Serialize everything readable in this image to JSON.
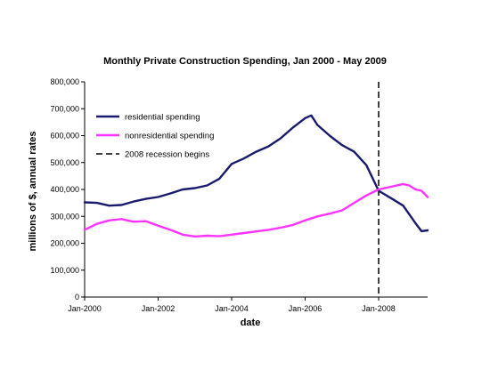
{
  "chart_data": {
    "type": "line",
    "title": "Monthly Private Construction Spending, Jan 2000 - May 2009",
    "xlabel": "date",
    "ylabel": "millions of $, annual rates",
    "xlim": [
      "Jan-2000",
      "May-2009"
    ],
    "ylim": [
      0,
      800000
    ],
    "y_ticks": [
      "0",
      "100,000",
      "200,000",
      "300,000",
      "400,000",
      "500,000",
      "600,000",
      "700,000",
      "800,000"
    ],
    "x_ticks": [
      "Jan-2000",
      "Jan-2002",
      "Jan-2004",
      "Jan-2006",
      "Jan-2008"
    ],
    "grid": false,
    "legend_position": "upper-left",
    "series": [
      {
        "name": "residential spending",
        "color": "#1a1a6e",
        "points": [
          [
            "2000-01",
            352000
          ],
          [
            "2000-05",
            350000
          ],
          [
            "2000-09",
            340000
          ],
          [
            "2001-01",
            342000
          ],
          [
            "2001-05",
            355000
          ],
          [
            "2001-09",
            365000
          ],
          [
            "2002-01",
            372000
          ],
          [
            "2002-05",
            385000
          ],
          [
            "2002-09",
            400000
          ],
          [
            "2003-01",
            405000
          ],
          [
            "2003-05",
            415000
          ],
          [
            "2003-09",
            440000
          ],
          [
            "2004-01",
            495000
          ],
          [
            "2004-05",
            515000
          ],
          [
            "2004-09",
            540000
          ],
          [
            "2005-01",
            560000
          ],
          [
            "2005-05",
            590000
          ],
          [
            "2005-09",
            630000
          ],
          [
            "2006-01",
            665000
          ],
          [
            "2006-03",
            675000
          ],
          [
            "2006-05",
            640000
          ],
          [
            "2006-09",
            600000
          ],
          [
            "2007-01",
            565000
          ],
          [
            "2007-05",
            540000
          ],
          [
            "2007-09",
            490000
          ],
          [
            "2008-01",
            395000
          ],
          [
            "2008-05",
            368000
          ],
          [
            "2008-09",
            340000
          ],
          [
            "2009-01",
            275000
          ],
          [
            "2009-03",
            245000
          ],
          [
            "2009-05",
            248000
          ]
        ]
      },
      {
        "name": "nonresidential spending",
        "color": "#ff33ff",
        "points": [
          [
            "2000-01",
            250000
          ],
          [
            "2000-05",
            272000
          ],
          [
            "2000-09",
            285000
          ],
          [
            "2001-01",
            290000
          ],
          [
            "2001-05",
            280000
          ],
          [
            "2001-09",
            282000
          ],
          [
            "2002-01",
            265000
          ],
          [
            "2002-05",
            250000
          ],
          [
            "2002-09",
            232000
          ],
          [
            "2003-01",
            225000
          ],
          [
            "2003-05",
            228000
          ],
          [
            "2003-09",
            226000
          ],
          [
            "2004-01",
            232000
          ],
          [
            "2004-05",
            238000
          ],
          [
            "2004-09",
            244000
          ],
          [
            "2005-01",
            250000
          ],
          [
            "2005-05",
            258000
          ],
          [
            "2005-09",
            268000
          ],
          [
            "2006-01",
            285000
          ],
          [
            "2006-05",
            300000
          ],
          [
            "2006-09",
            310000
          ],
          [
            "2007-01",
            322000
          ],
          [
            "2007-05",
            350000
          ],
          [
            "2007-09",
            378000
          ],
          [
            "2008-01",
            400000
          ],
          [
            "2008-05",
            410000
          ],
          [
            "2008-09",
            420000
          ],
          [
            "2008-11",
            415000
          ],
          [
            "2009-01",
            400000
          ],
          [
            "2009-03",
            395000
          ],
          [
            "2009-05",
            372000
          ]
        ]
      }
    ],
    "annotations": [
      {
        "name": "2008 recession begins",
        "type": "vertical-dashed-line",
        "x": "2008-01",
        "color": "#000000"
      }
    ]
  }
}
